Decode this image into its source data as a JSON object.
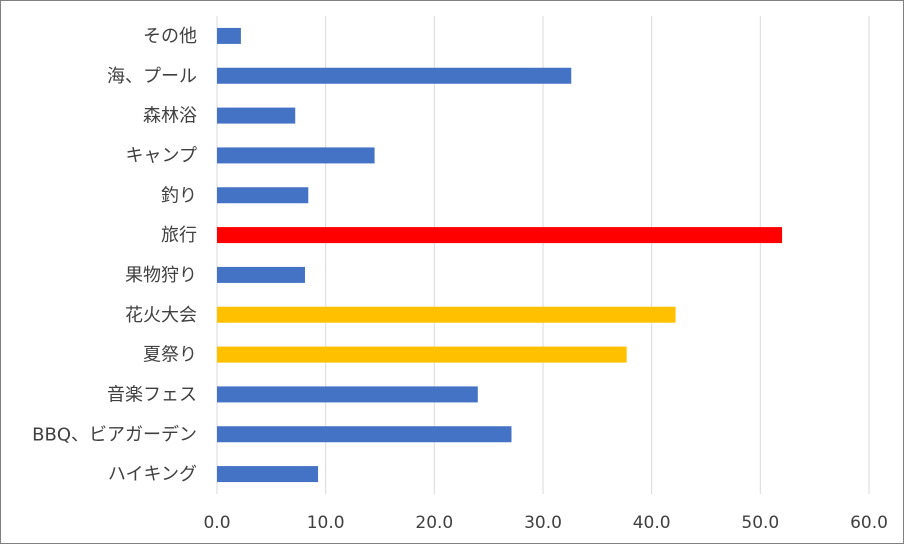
{
  "chart_data": {
    "type": "bar",
    "orientation": "horizontal",
    "categories": [
      "その他",
      "海、プール",
      "森林浴",
      "キャンプ",
      "釣り",
      "旅行",
      "果物狩り",
      "花火大会",
      "夏祭り",
      "音楽フェス",
      "BBQ、ビアガーデン",
      "ハイキング"
    ],
    "values": [
      2.2,
      32.6,
      7.2,
      14.5,
      8.4,
      52.0,
      8.1,
      42.2,
      37.7,
      24.0,
      27.1,
      9.3
    ],
    "colors": [
      "#4472C4",
      "#4472C4",
      "#4472C4",
      "#4472C4",
      "#4472C4",
      "#FF0000",
      "#4472C4",
      "#FFC000",
      "#FFC000",
      "#4472C4",
      "#4472C4",
      "#4472C4"
    ],
    "xlim": [
      0,
      60
    ],
    "x_ticks": [
      "0.0",
      "10.0",
      "20.0",
      "30.0",
      "40.0",
      "50.0",
      "60.0"
    ],
    "grid": "vertical",
    "gridline_color": "#D9D9D9",
    "legend": "none"
  }
}
